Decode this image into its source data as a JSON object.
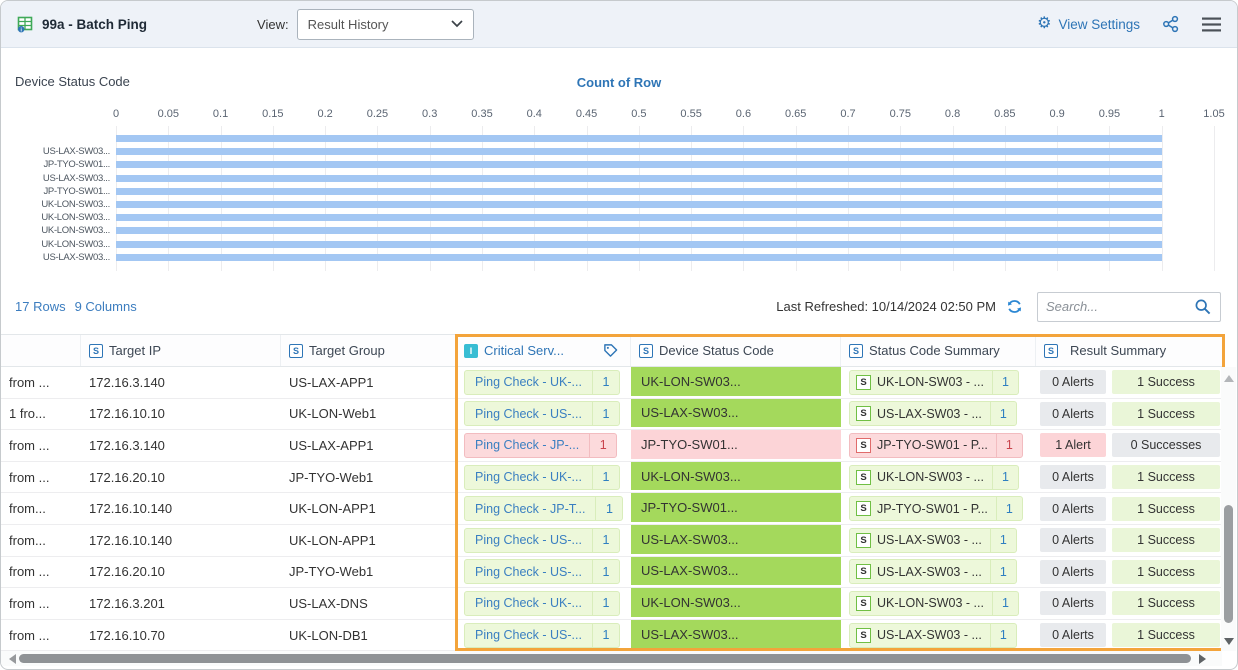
{
  "header": {
    "title": "99a - Batch Ping",
    "view_label": "View:",
    "view_value": "Result History",
    "view_settings": "View Settings"
  },
  "chart_data": {
    "type": "bar",
    "orientation": "horizontal",
    "title": "Device Status Code",
    "series_label": "Count of Row",
    "xlabel": "",
    "ylabel": "Device Status Code",
    "xlim": [
      0,
      1.05
    ],
    "grid": true,
    "x_ticks": [
      "0",
      "0.05",
      "0.1",
      "0.15",
      "0.2",
      "0.25",
      "0.3",
      "0.35",
      "0.4",
      "0.45",
      "0.5",
      "0.55",
      "0.6",
      "0.65",
      "0.7",
      "0.75",
      "0.8",
      "0.85",
      "0.9",
      "0.95",
      "1",
      "1.05"
    ],
    "bars": [
      {
        "label": "",
        "value": 1
      },
      {
        "label": "US-LAX-SW03...",
        "value": 1
      },
      {
        "label": "JP-TYO-SW01...",
        "value": 1
      },
      {
        "label": "US-LAX-SW03...",
        "value": 1
      },
      {
        "label": "JP-TYO-SW01...",
        "value": 1
      },
      {
        "label": "UK-LON-SW03...",
        "value": 1
      },
      {
        "label": "UK-LON-SW03...",
        "value": 1
      },
      {
        "label": "UK-LON-SW03...",
        "value": 1
      },
      {
        "label": "UK-LON-SW03...",
        "value": 1
      },
      {
        "label": "US-LAX-SW03...",
        "value": 1
      }
    ],
    "bar_color": "#a3c7f3"
  },
  "toolbar": {
    "rows_link": "17 Rows",
    "columns_link": "9 Columns",
    "last_refreshed": "Last Refreshed: 10/14/2024 02:50 PM",
    "search_placeholder": "Search..."
  },
  "table": {
    "columns": [
      {
        "label": "",
        "type": ""
      },
      {
        "label": "Target IP",
        "type": "S"
      },
      {
        "label": "Target Group",
        "type": "S"
      },
      {
        "label": "Critical Serv...",
        "type": "I",
        "has_tag_icon": true,
        "highlighted": true
      },
      {
        "label": "Device Status Code",
        "type": "S",
        "highlighted": true
      },
      {
        "label": "Status Code Summary",
        "type": "S",
        "highlighted": true
      },
      {
        "label": "Result Summary",
        "type": "S",
        "highlighted": true
      }
    ],
    "rows": [
      {
        "col0": "from ...",
        "target_ip": "172.16.3.140",
        "target_group": "US-LAX-APP1",
        "critical_service": {
          "label": "Ping Check - UK-...",
          "count": "1",
          "state": "success"
        },
        "device_status_code": {
          "text": "UK-LON-SW03...",
          "state": "success"
        },
        "status_code_summary": {
          "icon": "S",
          "label": "UK-LON-SW03 - ...",
          "count": "1",
          "state": "success"
        },
        "result_summary": {
          "alerts": "0 Alerts",
          "alerts_state": "neutral",
          "successes": "1 Success",
          "successes_state": "good"
        }
      },
      {
        "col0": "1 fro...",
        "target_ip": "172.16.10.10",
        "target_group": "UK-LON-Web1",
        "critical_service": {
          "label": "Ping Check - US-...",
          "count": "1",
          "state": "success"
        },
        "device_status_code": {
          "text": "US-LAX-SW03...",
          "state": "success"
        },
        "status_code_summary": {
          "icon": "S",
          "label": "US-LAX-SW03 - ...",
          "count": "1",
          "state": "success"
        },
        "result_summary": {
          "alerts": "0 Alerts",
          "alerts_state": "neutral",
          "successes": "1 Success",
          "successes_state": "good"
        }
      },
      {
        "col0": "from ...",
        "target_ip": "172.16.3.140",
        "target_group": "US-LAX-APP1",
        "critical_service": {
          "label": "Ping Check - JP-...",
          "count": "1",
          "state": "alert"
        },
        "device_status_code": {
          "text": "JP-TYO-SW01...",
          "state": "alert"
        },
        "status_code_summary": {
          "icon": "S",
          "label": "JP-TYO-SW01 - P...",
          "count": "1",
          "state": "alert"
        },
        "result_summary": {
          "alerts": "1 Alert",
          "alerts_state": "bad",
          "successes": "0 Successes",
          "successes_state": "neutral"
        }
      },
      {
        "col0": "from ...",
        "target_ip": "172.16.20.10",
        "target_group": "JP-TYO-Web1",
        "critical_service": {
          "label": "Ping Check - UK-...",
          "count": "1",
          "state": "success"
        },
        "device_status_code": {
          "text": "UK-LON-SW03...",
          "state": "success"
        },
        "status_code_summary": {
          "icon": "S",
          "label": "UK-LON-SW03 - ...",
          "count": "1",
          "state": "success"
        },
        "result_summary": {
          "alerts": "0 Alerts",
          "alerts_state": "neutral",
          "successes": "1 Success",
          "successes_state": "good"
        }
      },
      {
        "col0": "from...",
        "target_ip": "172.16.10.140",
        "target_group": "UK-LON-APP1",
        "critical_service": {
          "label": "Ping Check - JP-T...",
          "count": "1",
          "state": "success"
        },
        "device_status_code": {
          "text": "JP-TYO-SW01...",
          "state": "success"
        },
        "status_code_summary": {
          "icon": "S",
          "label": "JP-TYO-SW01 - P...",
          "count": "1",
          "state": "success"
        },
        "result_summary": {
          "alerts": "0 Alerts",
          "alerts_state": "neutral",
          "successes": "1 Success",
          "successes_state": "good"
        }
      },
      {
        "col0": "from...",
        "target_ip": "172.16.10.140",
        "target_group": "UK-LON-APP1",
        "critical_service": {
          "label": "Ping Check - US-...",
          "count": "1",
          "state": "success"
        },
        "device_status_code": {
          "text": "US-LAX-SW03...",
          "state": "success"
        },
        "status_code_summary": {
          "icon": "S",
          "label": "US-LAX-SW03 - ...",
          "count": "1",
          "state": "success"
        },
        "result_summary": {
          "alerts": "0 Alerts",
          "alerts_state": "neutral",
          "successes": "1 Success",
          "successes_state": "good"
        }
      },
      {
        "col0": "from ...",
        "target_ip": "172.16.20.10",
        "target_group": "JP-TYO-Web1",
        "critical_service": {
          "label": "Ping Check - US-...",
          "count": "1",
          "state": "success"
        },
        "device_status_code": {
          "text": "US-LAX-SW03...",
          "state": "success"
        },
        "status_code_summary": {
          "icon": "S",
          "label": "US-LAX-SW03 - ...",
          "count": "1",
          "state": "success"
        },
        "result_summary": {
          "alerts": "0 Alerts",
          "alerts_state": "neutral",
          "successes": "1 Success",
          "successes_state": "good"
        }
      },
      {
        "col0": "from ...",
        "target_ip": "172.16.3.201",
        "target_group": "US-LAX-DNS",
        "critical_service": {
          "label": "Ping Check - UK-...",
          "count": "1",
          "state": "success"
        },
        "device_status_code": {
          "text": "UK-LON-SW03...",
          "state": "success"
        },
        "status_code_summary": {
          "icon": "S",
          "label": "UK-LON-SW03 - ...",
          "count": "1",
          "state": "success"
        },
        "result_summary": {
          "alerts": "0 Alerts",
          "alerts_state": "neutral",
          "successes": "1 Success",
          "successes_state": "good"
        }
      },
      {
        "col0": "from ...",
        "target_ip": "172.16.10.70",
        "target_group": "UK-LON-DB1",
        "critical_service": {
          "label": "Ping Check - US-...",
          "count": "1",
          "state": "success"
        },
        "device_status_code": {
          "text": "US-LAX-SW03...",
          "state": "success"
        },
        "status_code_summary": {
          "icon": "S",
          "label": "US-LAX-SW03 - ...",
          "count": "1",
          "state": "success"
        },
        "result_summary": {
          "alerts": "0 Alerts",
          "alerts_state": "neutral",
          "successes": "1 Success",
          "successes_state": "good"
        }
      }
    ]
  },
  "colors": {
    "accent_blue": "#2e75b6",
    "highlight_orange": "#f3a43b",
    "success_green": "#a4d95c",
    "alert_pink": "#fcd4d7",
    "badge_green_bg": "#edf8da",
    "neutral_gray": "#e8eaed",
    "bar_blue": "#a3c7f3",
    "header_bg": "#eef2f8"
  }
}
